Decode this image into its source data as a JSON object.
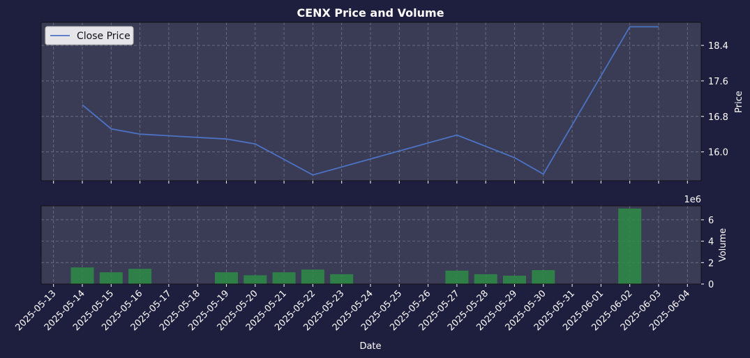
{
  "chart_data": {
    "title": "CENX Price and Volume",
    "x_dates": [
      "2025-05-13",
      "2025-05-14",
      "2025-05-15",
      "2025-05-16",
      "2025-05-17",
      "2025-05-18",
      "2025-05-19",
      "2025-05-20",
      "2025-05-21",
      "2025-05-22",
      "2025-05-23",
      "2025-05-24",
      "2025-05-25",
      "2025-05-26",
      "2025-05-27",
      "2025-05-28",
      "2025-05-29",
      "2025-05-30",
      "2025-05-31",
      "2025-06-01",
      "2025-06-02",
      "2025-06-03",
      "2025-06-04"
    ],
    "xlabel": "Date",
    "grid": true,
    "price": {
      "type": "line",
      "ylabel": "Price",
      "ylim": [
        15.35,
        18.92
      ],
      "yticks": [
        "16.0",
        "16.8",
        "17.6",
        "18.4"
      ],
      "legend": "Close Price",
      "legend_position": "top-left",
      "color": "#4c72c4",
      "points": [
        {
          "x": "2025-05-14",
          "y": 17.06
        },
        {
          "x": "2025-05-15",
          "y": 16.52
        },
        {
          "x": "2025-05-16",
          "y": 16.4
        },
        {
          "x": "2025-05-19",
          "y": 16.29
        },
        {
          "x": "2025-05-20",
          "y": 16.18
        },
        {
          "x": "2025-05-22",
          "y": 15.48
        },
        {
          "x": "2025-05-27",
          "y": 16.38
        },
        {
          "x": "2025-05-29",
          "y": 15.87
        },
        {
          "x": "2025-05-30",
          "y": 15.5
        },
        {
          "x": "2025-06-02",
          "y": 18.82
        },
        {
          "x": "2025-06-03",
          "y": 18.82
        }
      ]
    },
    "volume": {
      "type": "bar",
      "ylabel": "Volume",
      "scale_label": "1e6",
      "ylim": [
        0,
        7.3
      ],
      "yticks": [
        "0",
        "2",
        "4",
        "6"
      ],
      "color": "#2e8b47",
      "bars": [
        {
          "x": "2025-05-14",
          "y": 1.55
        },
        {
          "x": "2025-05-15",
          "y": 1.1
        },
        {
          "x": "2025-05-16",
          "y": 1.42
        },
        {
          "x": "2025-05-19",
          "y": 1.1
        },
        {
          "x": "2025-05-20",
          "y": 0.82
        },
        {
          "x": "2025-05-21",
          "y": 1.1
        },
        {
          "x": "2025-05-22",
          "y": 1.35
        },
        {
          "x": "2025-05-23",
          "y": 0.92
        },
        {
          "x": "2025-05-27",
          "y": 1.25
        },
        {
          "x": "2025-05-28",
          "y": 0.92
        },
        {
          "x": "2025-05-29",
          "y": 0.78
        },
        {
          "x": "2025-05-30",
          "y": 1.3
        },
        {
          "x": "2025-06-02",
          "y": 7.05
        }
      ]
    }
  }
}
